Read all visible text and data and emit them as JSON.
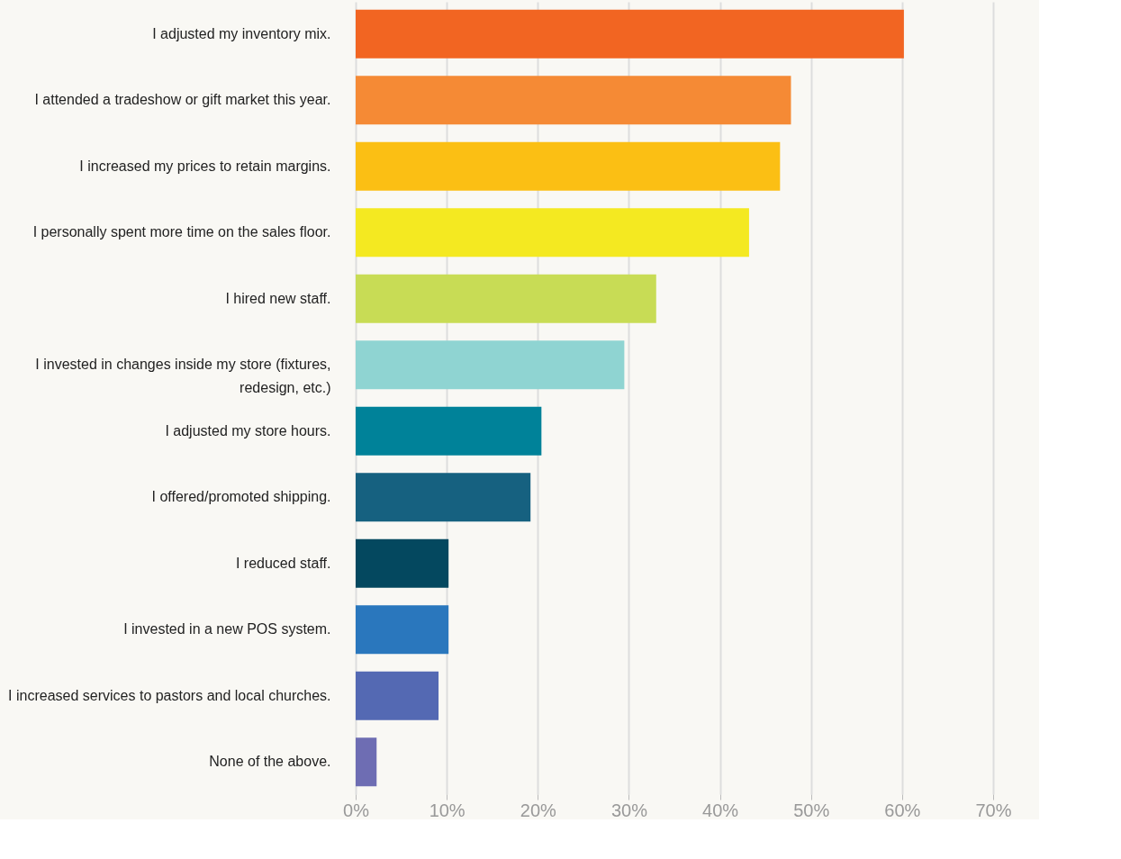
{
  "chart_data": {
    "type": "bar",
    "orientation": "horizontal",
    "categories": [
      "I adjusted my inventory mix.",
      "I attended a tradeshow or gift market this year.",
      "I increased my prices to retain margins.",
      "I personally spent more time on the sales floor.",
      "I hired new staff.",
      "I invested in changes inside my store (fixtures, redesign, etc.)",
      "I adjusted my store hours.",
      "I offered/promoted shipping.",
      "I reduced staff.",
      "I invested in a new POS system.",
      "I increased services to pastors and local churches.",
      "None of the above."
    ],
    "values": [
      60.2,
      47.8,
      46.6,
      43.2,
      33.0,
      29.5,
      20.4,
      19.2,
      10.2,
      10.2,
      9.1,
      2.3
    ],
    "colors": [
      "#f26522",
      "#f58a35",
      "#fbbf14",
      "#f4e921",
      "#c8dc55",
      "#8fd4d2",
      "#008299",
      "#166180",
      "#04485f",
      "#2a77bd",
      "#5469b3",
      "#6e6db3"
    ],
    "xlim": [
      0,
      70
    ],
    "xticks": [
      {
        "value": 0,
        "label": "0%"
      },
      {
        "value": 10,
        "label": "10%"
      },
      {
        "value": 20,
        "label": "20%"
      },
      {
        "value": 30,
        "label": "30%"
      },
      {
        "value": 40,
        "label": "40%"
      },
      {
        "value": 50,
        "label": "50%"
      },
      {
        "value": 60,
        "label": "60%"
      },
      {
        "value": 70,
        "label": "70%"
      }
    ],
    "grid": "x"
  }
}
